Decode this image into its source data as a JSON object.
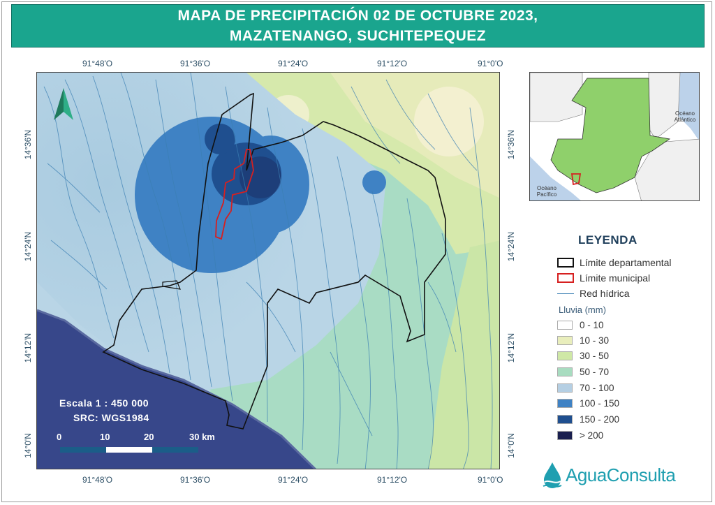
{
  "title": {
    "line1": "MAPA DE PRECIPITACIÓN 02 DE OCTUBRE 2023,",
    "line2": "MAZATENANGO, SUCHITEPEQUEZ"
  },
  "axes": {
    "lon_ticks": [
      "91°48'O",
      "91°36'O",
      "91°24'O",
      "91°12'O",
      "91°0'O"
    ],
    "lat_ticks": [
      "14°36'N",
      "14°24'N",
      "14°12'N",
      "14°0'N"
    ]
  },
  "inset": {
    "ocean_atlantic": "Océano Atlántico",
    "ocean_pacific": "Océano Pacífico"
  },
  "legend": {
    "title": "LEYENDA",
    "items": [
      {
        "label": "Límite departamental",
        "color": "#111111"
      },
      {
        "label": "Límite municipal",
        "color": "#d62020"
      },
      {
        "label": "Red hídrica",
        "color": "#3b7fb3"
      }
    ],
    "rain_title": "Lluvia (mm)",
    "classes": [
      {
        "label": "0 - 10",
        "color": "#ffffff"
      },
      {
        "label": "10 - 30",
        "color": "#e9eebc"
      },
      {
        "label": "30 - 50",
        "color": "#cfe8a6"
      },
      {
        "label": "50 - 70",
        "color": "#a8dcc0"
      },
      {
        "label": "70 - 100",
        "color": "#b5cfe3"
      },
      {
        "label": "100 - 150",
        "color": "#3f82c4"
      },
      {
        "label": "150 - 200",
        "color": "#1f4f8f"
      },
      {
        "label": "> 200",
        "color": "#1a1f4f"
      }
    ]
  },
  "scale": {
    "label": "Escala   1 : 450 000",
    "src": "SRC:  WGS1984",
    "ticks": [
      "0",
      "10",
      "20",
      "30 km"
    ]
  },
  "logo": {
    "text": "AguaConsulta",
    "color": "#1f9fb0"
  }
}
